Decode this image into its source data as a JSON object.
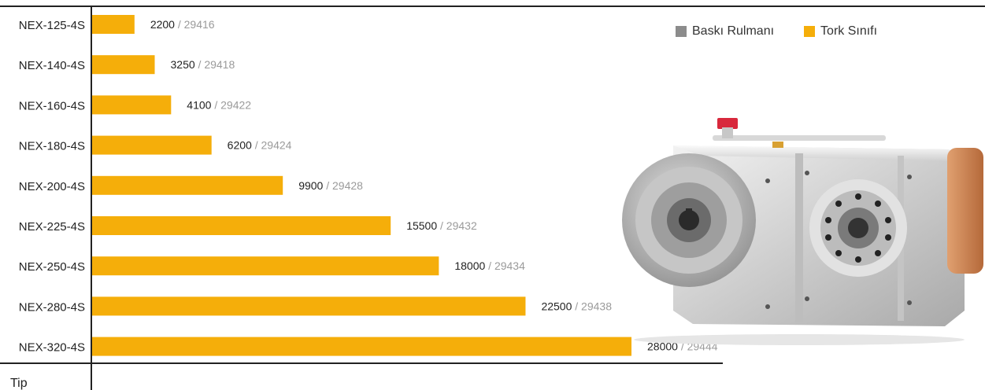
{
  "chart_data": {
    "type": "bar",
    "orientation": "horizontal",
    "categories": [
      "NEX-125-4S",
      "NEX-140-4S",
      "NEX-160-4S",
      "NEX-180-4S",
      "NEX-200-4S",
      "NEX-225-4S",
      "NEX-250-4S",
      "NEX-280-4S",
      "NEX-320-4S"
    ],
    "series": [
      {
        "name": "Tork Sınıfı",
        "values": [
          2200,
          3250,
          4100,
          6200,
          9900,
          15500,
          18000,
          22500,
          28000
        ],
        "color": "#F5AE0A"
      }
    ],
    "data_labels": [
      {
        "value": "2200",
        "code": "29416"
      },
      {
        "value": "3250",
        "code": "29418"
      },
      {
        "value": "4100",
        "code": "29422"
      },
      {
        "value": "6200",
        "code": "29424"
      },
      {
        "value": "9900",
        "code": "29428"
      },
      {
        "value": "15500",
        "code": "29432"
      },
      {
        "value": "18000",
        "code": "29434"
      },
      {
        "value": "22500",
        "code": "29438"
      },
      {
        "value": "28000",
        "code": "29444"
      }
    ],
    "separator": " / ",
    "category_axis_label": "Tip",
    "legend": [
      {
        "name": "Baskı Rulmanı",
        "color": "#8C8C8C"
      },
      {
        "name": "Tork Sınıfı",
        "color": "#F5AE0A"
      }
    ],
    "legend_position": "top-right",
    "xlim": [
      0,
      28000
    ],
    "grid": false
  },
  "image": {
    "icon": "gearbox-image"
  }
}
